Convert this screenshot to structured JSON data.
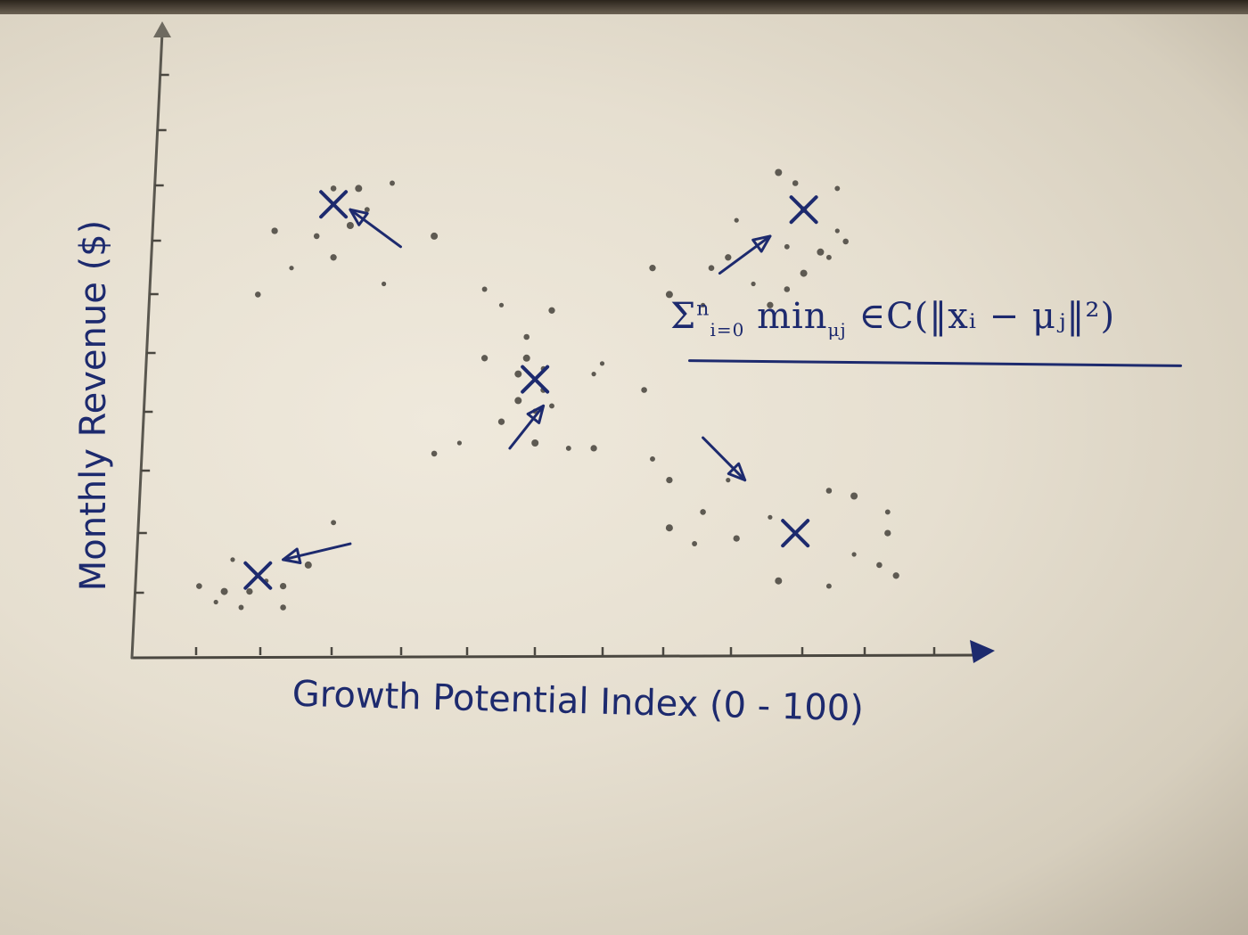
{
  "chart_data": {
    "type": "scatter",
    "title": "",
    "xlabel": "Growth Potential Index (0 - 100)",
    "ylabel": "Monthly Revenue ($)",
    "xlim": [
      0,
      100
    ],
    "ylim": [
      0,
      100
    ],
    "grid": false,
    "points": [
      [
        10,
        10
      ],
      [
        8,
        13
      ],
      [
        11,
        12
      ],
      [
        13,
        9
      ],
      [
        14,
        12
      ],
      [
        16,
        14
      ],
      [
        18,
        9
      ],
      [
        21,
        17
      ],
      [
        24,
        25
      ],
      [
        18,
        13
      ],
      [
        12,
        18
      ],
      [
        24,
        88
      ],
      [
        27,
        88
      ],
      [
        31,
        89
      ],
      [
        17,
        80
      ],
      [
        19,
        73
      ],
      [
        22,
        79
      ],
      [
        26,
        81
      ],
      [
        28,
        84
      ],
      [
        24,
        75
      ],
      [
        30,
        70
      ],
      [
        15,
        68
      ],
      [
        36,
        79
      ],
      [
        42,
        69
      ],
      [
        50,
        65
      ],
      [
        44,
        66
      ],
      [
        47,
        60
      ],
      [
        47,
        56
      ],
      [
        49,
        54
      ],
      [
        42,
        56
      ],
      [
        55,
        53
      ],
      [
        49,
        50
      ],
      [
        46,
        48
      ],
      [
        48,
        46
      ],
      [
        44,
        44
      ],
      [
        39,
        40
      ],
      [
        36,
        38
      ],
      [
        48,
        40
      ],
      [
        52,
        39
      ],
      [
        55,
        39
      ],
      [
        56,
        55
      ],
      [
        61,
        50
      ],
      [
        46,
        53
      ],
      [
        50,
        47
      ],
      [
        62,
        73
      ],
      [
        72,
        82
      ],
      [
        79,
        89
      ],
      [
        77,
        91
      ],
      [
        84,
        88
      ],
      [
        80,
        84
      ],
      [
        84,
        80
      ],
      [
        85,
        78
      ],
      [
        82,
        76
      ],
      [
        78,
        77
      ],
      [
        71,
        75
      ],
      [
        74,
        70
      ],
      [
        78,
        69
      ],
      [
        80,
        72
      ],
      [
        83,
        75
      ],
      [
        76,
        66
      ],
      [
        68,
        66
      ],
      [
        69,
        73
      ],
      [
        64,
        68
      ],
      [
        62,
        37
      ],
      [
        64,
        33
      ],
      [
        71,
        33
      ],
      [
        68,
        27
      ],
      [
        64,
        24
      ],
      [
        67,
        21
      ],
      [
        72,
        22
      ],
      [
        76,
        26
      ],
      [
        83,
        31
      ],
      [
        86,
        30
      ],
      [
        90,
        27
      ],
      [
        90,
        23
      ],
      [
        86,
        19
      ],
      [
        89,
        17
      ],
      [
        77,
        14
      ],
      [
        83,
        13
      ],
      [
        91,
        15
      ]
    ],
    "centroids": [
      [
        15,
        15
      ],
      [
        24,
        85
      ],
      [
        48,
        52
      ],
      [
        80,
        84
      ],
      [
        79,
        23
      ]
    ],
    "annotations": [
      "Σ",
      "n",
      "i=0",
      "min",
      "μj",
      "∈C(‖xᵢ − μⱼ‖²)"
    ]
  }
}
